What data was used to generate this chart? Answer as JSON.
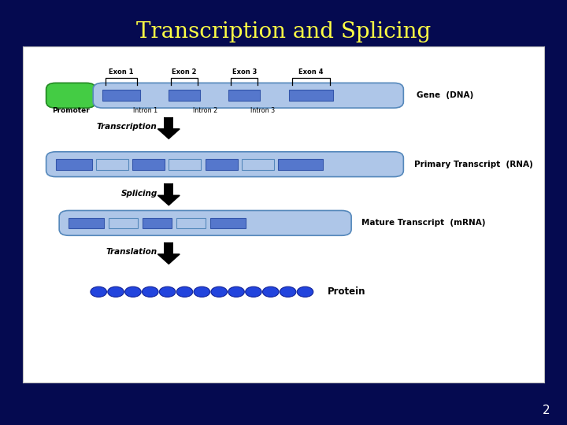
{
  "title": "Transcription and Splicing",
  "title_color": "#FFFF44",
  "title_fontsize": 20,
  "bg_color": "#050a50",
  "slide_number": "2",
  "exon_labels": [
    "Exon 1",
    "Exon 2",
    "Exon 3",
    "Exon 4"
  ],
  "intron_labels": [
    "Intron 1",
    "Intron 2",
    "Intron 3"
  ],
  "promoter_label": "Promoter",
  "gene_label": "Gene  (DNA)",
  "primary_label": "Primary Transcript  (RNA)",
  "mature_label": "Mature Transcript  (mRNA)",
  "protein_label": "Protein",
  "step_labels": [
    "Transcription",
    "Splicing",
    "Translation"
  ],
  "light_blue": "#aec6e8",
  "medium_blue": "#5577cc",
  "green": "#44cc44",
  "protein_blue": "#2244dd",
  "panel_color": "#f0f0f0"
}
